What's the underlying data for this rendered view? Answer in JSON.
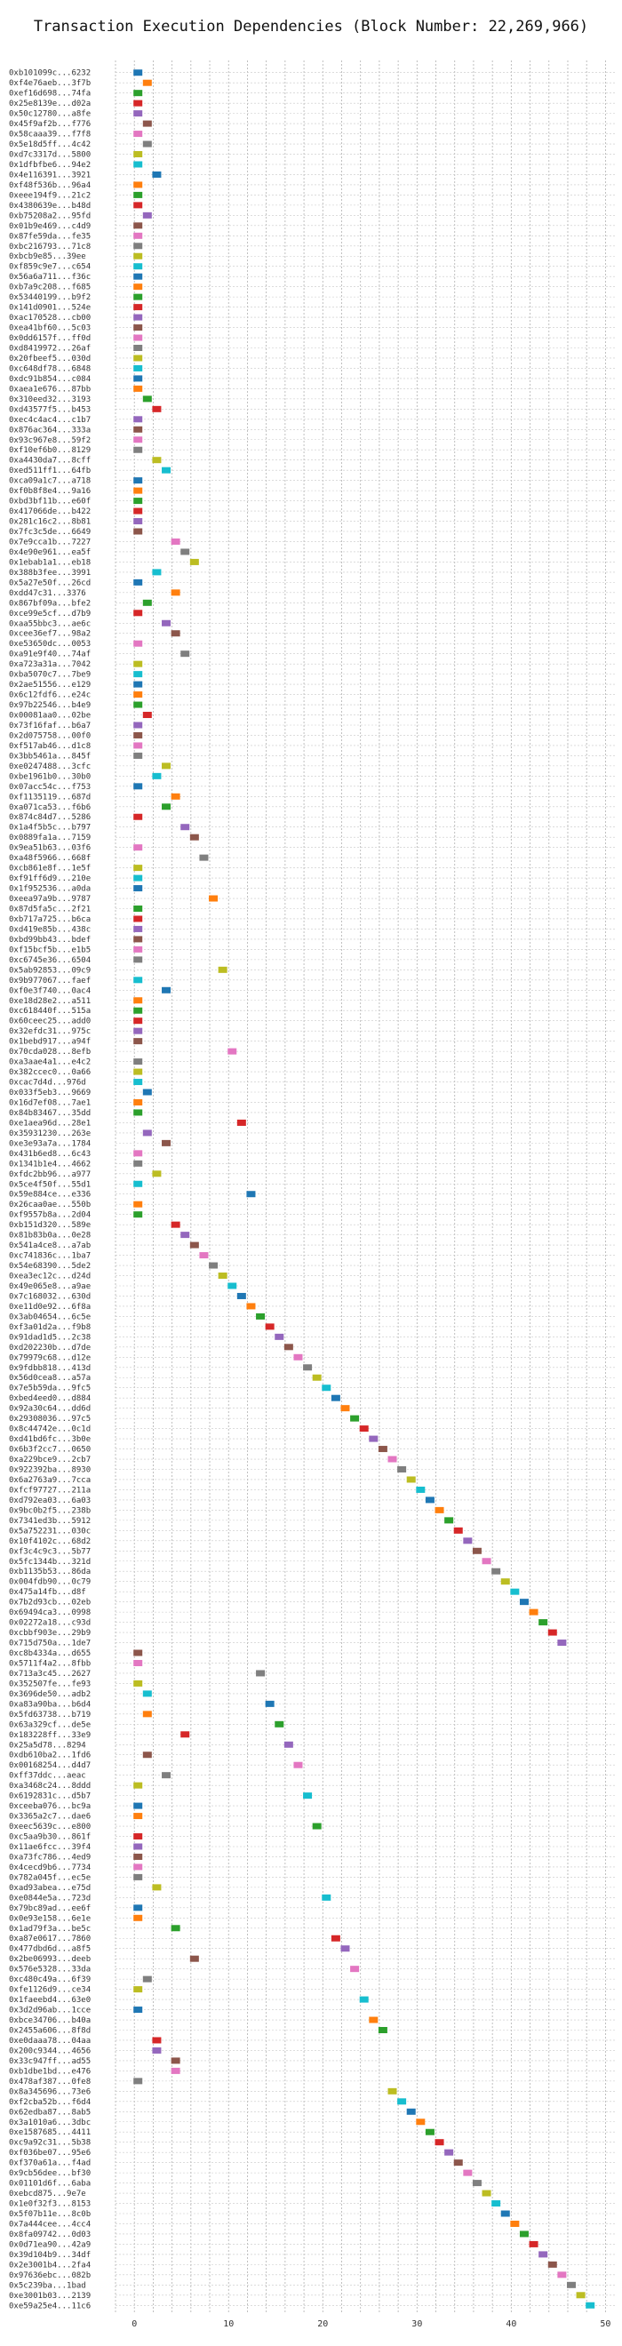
{
  "chart_data": {
    "type": "gantt-scatter",
    "title": "Transaction Execution Dependencies (Block Number: 22,269,966)",
    "xlabel": "",
    "ylabel": "",
    "xlim": [
      -2,
      51
    ],
    "x_ticks": [
      0,
      10,
      20,
      30,
      40,
      50
    ],
    "grid": true,
    "palette": [
      "#1f77b4",
      "#ff7f0e",
      "#2ca02c",
      "#d62728",
      "#9467bd",
      "#8c564b",
      "#e377c2",
      "#7f7f7f",
      "#bcbd22",
      "#17becf"
    ],
    "transactions": [
      {
        "hash": "0xb101099c...6232",
        "start": 0
      },
      {
        "hash": "0xf4e76aeb...3f7b",
        "start": 1
      },
      {
        "hash": "0xef16d698...74fa",
        "start": 0
      },
      {
        "hash": "0x25e8139e...d02a",
        "start": 0
      },
      {
        "hash": "0x50c12780...a8fe",
        "start": 0
      },
      {
        "hash": "0x45f9af2b...f776",
        "start": 1
      },
      {
        "hash": "0x58caaa39...f7f8",
        "start": 0
      },
      {
        "hash": "0x5e18d5ff...4c42",
        "start": 1
      },
      {
        "hash": "0xd7c3317d...5800",
        "start": 0
      },
      {
        "hash": "0x1dfbfbe6...94e2",
        "start": 0
      },
      {
        "hash": "0x4e116391...3921",
        "start": 2
      },
      {
        "hash": "0xf48f536b...96a4",
        "start": 0
      },
      {
        "hash": "0xeee194f9...21c2",
        "start": 0
      },
      {
        "hash": "0x4380639e...b48d",
        "start": 0
      },
      {
        "hash": "0xb75208a2...95fd",
        "start": 1
      },
      {
        "hash": "0x01b9e469...c4d9",
        "start": 0
      },
      {
        "hash": "0x87fe59da...fe35",
        "start": 0
      },
      {
        "hash": "0xbc216793...71c8",
        "start": 0
      },
      {
        "hash": "0xbcb9e85...39ee",
        "start": 0
      },
      {
        "hash": "0xf859c9e7...c654",
        "start": 0
      },
      {
        "hash": "0x56a6a711...f36c",
        "start": 0
      },
      {
        "hash": "0xb7a9c208...f685",
        "start": 0
      },
      {
        "hash": "0x53440199...b9f2",
        "start": 0
      },
      {
        "hash": "0x141d0901...524e",
        "start": 0
      },
      {
        "hash": "0xac170528...cb00",
        "start": 0
      },
      {
        "hash": "0xea41bf60...5c03",
        "start": 0
      },
      {
        "hash": "0x0dd6157f...ff0d",
        "start": 0
      },
      {
        "hash": "0xd8419972...26af",
        "start": 0
      },
      {
        "hash": "0x20fbeef5...030d",
        "start": 0
      },
      {
        "hash": "0xc648df78...6848",
        "start": 0
      },
      {
        "hash": "0xdc91b854...c084",
        "start": 0
      },
      {
        "hash": "0xaea1e676...87bb",
        "start": 0
      },
      {
        "hash": "0x310eed32...3193",
        "start": 1
      },
      {
        "hash": "0xd43577f5...b453",
        "start": 2
      },
      {
        "hash": "0xec4c4ac4...c1b7",
        "start": 0
      },
      {
        "hash": "0x876ac364...333a",
        "start": 0
      },
      {
        "hash": "0x93c967e8...59f2",
        "start": 0
      },
      {
        "hash": "0xf10ef6b0...8129",
        "start": 0
      },
      {
        "hash": "0xa4430da7...8cff",
        "start": 2
      },
      {
        "hash": "0xed511ff1...64fb",
        "start": 3
      },
      {
        "hash": "0xca09a1c7...a718",
        "start": 0
      },
      {
        "hash": "0xf0b8f8e4...9a16",
        "start": 0
      },
      {
        "hash": "0xbd3bf11b...e60f",
        "start": 0
      },
      {
        "hash": "0x417066de...b422",
        "start": 0
      },
      {
        "hash": "0x281c16c2...8b81",
        "start": 0
      },
      {
        "hash": "0x7fc3c5de...6649",
        "start": 0
      },
      {
        "hash": "0x7e9cca1b...7227",
        "start": 4
      },
      {
        "hash": "0x4e90e961...ea5f",
        "start": 5
      },
      {
        "hash": "0x1ebab1a1...eb18",
        "start": 6
      },
      {
        "hash": "0x388b3fee...3991",
        "start": 2
      },
      {
        "hash": "0x5a27e50f...26cd",
        "start": 0
      },
      {
        "hash": "0xdd47c31...3376",
        "start": 4
      },
      {
        "hash": "0x867bf09a...bfe2",
        "start": 1
      },
      {
        "hash": "0xce99e5cf...d7b9",
        "start": 0
      },
      {
        "hash": "0xaa55bbc3...ae6c",
        "start": 3
      },
      {
        "hash": "0xcee36ef7...98a2",
        "start": 4
      },
      {
        "hash": "0xe53650dc...0053",
        "start": 0
      },
      {
        "hash": "0xa91e9f40...74af",
        "start": 5
      },
      {
        "hash": "0xa723a31a...7042",
        "start": 0
      },
      {
        "hash": "0xba5070c7...7be9",
        "start": 0
      },
      {
        "hash": "0x2ae51556...e129",
        "start": 0
      },
      {
        "hash": "0x6c12fdf6...e24c",
        "start": 0
      },
      {
        "hash": "0x97b22546...b4e9",
        "start": 0
      },
      {
        "hash": "0x00081aa0...02be",
        "start": 1
      },
      {
        "hash": "0x73f16faf...b6a7",
        "start": 0
      },
      {
        "hash": "0x2d075758...00f0",
        "start": 0
      },
      {
        "hash": "0xf517ab46...d1c8",
        "start": 0
      },
      {
        "hash": "0x3bb5461a...845f",
        "start": 0
      },
      {
        "hash": "0xe0247488...3cfc",
        "start": 3
      },
      {
        "hash": "0xbe1961b0...30b0",
        "start": 2
      },
      {
        "hash": "0x07acc54c...f753",
        "start": 0
      },
      {
        "hash": "0xf1135119...687d",
        "start": 4
      },
      {
        "hash": "0xa071ca53...f6b6",
        "start": 3
      },
      {
        "hash": "0x874c84d7...5286",
        "start": 0
      },
      {
        "hash": "0x1a4f5b5c...b797",
        "start": 5
      },
      {
        "hash": "0x0889fa1a...7159",
        "start": 6
      },
      {
        "hash": "0x9ea51b63...03f6",
        "start": 0
      },
      {
        "hash": "0xa48f5966...668f",
        "start": 7
      },
      {
        "hash": "0xcb861e8f...1e5f",
        "start": 0
      },
      {
        "hash": "0xf91ff6d9...210e",
        "start": 0
      },
      {
        "hash": "0x1f952536...a0da",
        "start": 0
      },
      {
        "hash": "0xeea97a9b...9787",
        "start": 8
      },
      {
        "hash": "0x87d5fa5c...2f21",
        "start": 0
      },
      {
        "hash": "0xb717a725...b6ca",
        "start": 0
      },
      {
        "hash": "0xd419e85b...438c",
        "start": 0
      },
      {
        "hash": "0xbd99bb43...bdef",
        "start": 0
      },
      {
        "hash": "0xf15bcf5b...e1b5",
        "start": 0
      },
      {
        "hash": "0xc6745e36...6504",
        "start": 0
      },
      {
        "hash": "0x5ab92853...09c9",
        "start": 9
      },
      {
        "hash": "0x9b977067...faef",
        "start": 0
      },
      {
        "hash": "0xf0e3f740...0ac4",
        "start": 3
      },
      {
        "hash": "0xe18d28e2...a511",
        "start": 0
      },
      {
        "hash": "0xc618440f...515a",
        "start": 0
      },
      {
        "hash": "0x60ceec25...add0",
        "start": 0
      },
      {
        "hash": "0x32efdc31...975c",
        "start": 0
      },
      {
        "hash": "0x1bebd917...a94f",
        "start": 0
      },
      {
        "hash": "0x70cda028...8efb",
        "start": 10
      },
      {
        "hash": "0xa3aae4a1...e4c2",
        "start": 0
      },
      {
        "hash": "0x382ccec0...0a66",
        "start": 0
      },
      {
        "hash": "0xcac7d4d...976d",
        "start": 0
      },
      {
        "hash": "0x033f5eb3...9669",
        "start": 1
      },
      {
        "hash": "0x16d7ef08...7ae1",
        "start": 0
      },
      {
        "hash": "0x84b83467...35dd",
        "start": 0
      },
      {
        "hash": "0xe1aea96d...28e1",
        "start": 11
      },
      {
        "hash": "0x35931230...263e",
        "start": 1
      },
      {
        "hash": "0xe3e93a7a...1784",
        "start": 3
      },
      {
        "hash": "0x431b6ed8...6c43",
        "start": 0
      },
      {
        "hash": "0x1341b1e4...4662",
        "start": 0
      },
      {
        "hash": "0xfdc2bb96...a977",
        "start": 2
      },
      {
        "hash": "0x5ce4f50f...55d1",
        "start": 0
      },
      {
        "hash": "0x59e884ce...e336",
        "start": 12
      },
      {
        "hash": "0x26caa0ae...550b",
        "start": 0
      },
      {
        "hash": "0xf9557b8a...2d04",
        "start": 0
      },
      {
        "hash": "0xb151d320...589e",
        "start": 4
      },
      {
        "hash": "0x81b83b0a...0e28",
        "start": 5
      },
      {
        "hash": "0x541a4ce8...a7ab",
        "start": 6
      },
      {
        "hash": "0xc741836c...1ba7",
        "start": 7
      },
      {
        "hash": "0x54e68390...5de2",
        "start": 8
      },
      {
        "hash": "0xea3ec12c...d24d",
        "start": 9
      },
      {
        "hash": "0x49e065e8...a9ae",
        "start": 10
      },
      {
        "hash": "0x7c168032...630d",
        "start": 11
      },
      {
        "hash": "0xe11d0e92...6f8a",
        "start": 12
      },
      {
        "hash": "0x3ab04654...6c5e",
        "start": 13
      },
      {
        "hash": "0xf3a01d2a...f9b8",
        "start": 14
      },
      {
        "hash": "0x91dad1d5...2c38",
        "start": 15
      },
      {
        "hash": "0xd202230b...d7de",
        "start": 16
      },
      {
        "hash": "0x79979c68...d12e",
        "start": 17
      },
      {
        "hash": "0x9fdbb818...413d",
        "start": 18
      },
      {
        "hash": "0x56d0cea8...a57a",
        "start": 19
      },
      {
        "hash": "0x7e5b59da...9fc5",
        "start": 20
      },
      {
        "hash": "0xbed4eed0...d884",
        "start": 21
      },
      {
        "hash": "0x92a30c64...dd6d",
        "start": 22
      },
      {
        "hash": "0x29308036...97c5",
        "start": 23
      },
      {
        "hash": "0x8c44742e...0c1d",
        "start": 24
      },
      {
        "hash": "0xd41bd6fc...3b0e",
        "start": 25
      },
      {
        "hash": "0x6b3f2cc7...0650",
        "start": 26
      },
      {
        "hash": "0xa229bce9...2cb7",
        "start": 27
      },
      {
        "hash": "0x922392ba...8930",
        "start": 28
      },
      {
        "hash": "0x6a2763a9...7cca",
        "start": 29
      },
      {
        "hash": "0xfcf97727...211a",
        "start": 30
      },
      {
        "hash": "0xd792ea03...6a03",
        "start": 31
      },
      {
        "hash": "0x9bc0b2f5...238b",
        "start": 32
      },
      {
        "hash": "0x7341ed3b...5912",
        "start": 33
      },
      {
        "hash": "0x5a752231...030c",
        "start": 34
      },
      {
        "hash": "0x10f4102c...68d2",
        "start": 35
      },
      {
        "hash": "0xf3c4c9c3...5b77",
        "start": 36
      },
      {
        "hash": "0x5fc1344b...321d",
        "start": 37
      },
      {
        "hash": "0xb1135b53...86da",
        "start": 38
      },
      {
        "hash": "0x004fdb90...0c79",
        "start": 39
      },
      {
        "hash": "0x475a14fb...d8f",
        "start": 40
      },
      {
        "hash": "0x7b2d93cb...02eb",
        "start": 41
      },
      {
        "hash": "0x69494ca3...0998",
        "start": 42
      },
      {
        "hash": "0x02272a18...c93d",
        "start": 43
      },
      {
        "hash": "0xcbbf903e...29b9",
        "start": 44
      },
      {
        "hash": "0x715d750a...1de7",
        "start": 45
      },
      {
        "hash": "0xc8b4334a...d655",
        "start": 0
      },
      {
        "hash": "0x5711f4a2...8fbb",
        "start": 0
      },
      {
        "hash": "0x713a3c45...2627",
        "start": 13
      },
      {
        "hash": "0x352507fe...fe93",
        "start": 0
      },
      {
        "hash": "0x3696de50...adb2",
        "start": 1
      },
      {
        "hash": "0xa83a90ba...b6d4",
        "start": 14
      },
      {
        "hash": "0x5fd63738...b719",
        "start": 1
      },
      {
        "hash": "0x63a329cf...de5e",
        "start": 15
      },
      {
        "hash": "0x183228ff...33e9",
        "start": 5
      },
      {
        "hash": "0x25a5d78...8294",
        "start": 16
      },
      {
        "hash": "0xdb610ba2...1fd6",
        "start": 1
      },
      {
        "hash": "0x00168254...d4d7",
        "start": 17
      },
      {
        "hash": "0xff37ddc...aeac",
        "start": 3
      },
      {
        "hash": "0xa3468c24...8ddd",
        "start": 0
      },
      {
        "hash": "0x6192831c...d5b7",
        "start": 18
      },
      {
        "hash": "0xceeba076...bc9a",
        "start": 0
      },
      {
        "hash": "0x3365a2c7...dae6",
        "start": 0
      },
      {
        "hash": "0xeec5639c...e800",
        "start": 19
      },
      {
        "hash": "0xc5aa9b30...861f",
        "start": 0
      },
      {
        "hash": "0x11ae6fcc...39f4",
        "start": 0
      },
      {
        "hash": "0xa73fc786...4ed9",
        "start": 0
      },
      {
        "hash": "0x4cecd9b6...7734",
        "start": 0
      },
      {
        "hash": "0x782a045f...ec5e",
        "start": 0
      },
      {
        "hash": "0xad93abea...e75d",
        "start": 2
      },
      {
        "hash": "0xe0844e5a...723d",
        "start": 20
      },
      {
        "hash": "0x79bc89ad...ee6f",
        "start": 0
      },
      {
        "hash": "0x0e93e158...6e1e",
        "start": 0
      },
      {
        "hash": "0x1ad79f3a...be5c",
        "start": 4
      },
      {
        "hash": "0xa87e0617...7860",
        "start": 21
      },
      {
        "hash": "0x477dbd6d...a8f5",
        "start": 22
      },
      {
        "hash": "0x2be06993...deeb",
        "start": 6
      },
      {
        "hash": "0x576e5328...33da",
        "start": 23
      },
      {
        "hash": "0xc480c49a...6f39",
        "start": 1
      },
      {
        "hash": "0xfe1126d9...ce34",
        "start": 0
      },
      {
        "hash": "0x1faeebd4...63e0",
        "start": 24
      },
      {
        "hash": "0x3d2d96ab...1cce",
        "start": 0
      },
      {
        "hash": "0xbce34706...b40a",
        "start": 25
      },
      {
        "hash": "0x2455a606...8f8d",
        "start": 26
      },
      {
        "hash": "0xe0daaa78...04aa",
        "start": 2
      },
      {
        "hash": "0x200c9344...4656",
        "start": 2
      },
      {
        "hash": "0x33c947ff...ad55",
        "start": 4
      },
      {
        "hash": "0xb1dbe1bd...e476",
        "start": 4
      },
      {
        "hash": "0x478af387...0fe8",
        "start": 0
      },
      {
        "hash": "0x8a345696...73e6",
        "start": 27
      },
      {
        "hash": "0xf2cba52b...f6d4",
        "start": 28
      },
      {
        "hash": "0x62edba87...8ab5",
        "start": 29
      },
      {
        "hash": "0x3a1010a6...3dbc",
        "start": 30
      },
      {
        "hash": "0xe1587685...4411",
        "start": 31
      },
      {
        "hash": "0xc9a92c31...5b38",
        "start": 32
      },
      {
        "hash": "0xf036be07...95e6",
        "start": 33
      },
      {
        "hash": "0xf370a61a...f4ad",
        "start": 34
      },
      {
        "hash": "0x9cb56dee...bf30",
        "start": 35
      },
      {
        "hash": "0x01101d6f...6aba",
        "start": 36
      },
      {
        "hash": "0xebcd875...9e7e",
        "start": 37
      },
      {
        "hash": "0x1e0f32f3...8153",
        "start": 38
      },
      {
        "hash": "0x5f07b11e...8c0b",
        "start": 39
      },
      {
        "hash": "0x7a444cee...4cc4",
        "start": 40
      },
      {
        "hash": "0x8fa09742...0d03",
        "start": 41
      },
      {
        "hash": "0x0d71ea90...42a9",
        "start": 42
      },
      {
        "hash": "0x39d104b9...34df",
        "start": 43
      },
      {
        "hash": "0x2e3001b4...2fa4",
        "start": 44
      },
      {
        "hash": "0x97636ebc...082b",
        "start": 45
      },
      {
        "hash": "0x5c239ba...1bad",
        "start": 46
      },
      {
        "hash": "0xe3001b03...2139",
        "start": 47
      },
      {
        "hash": "0xe59a25e4...11c6",
        "start": 48
      }
    ]
  }
}
